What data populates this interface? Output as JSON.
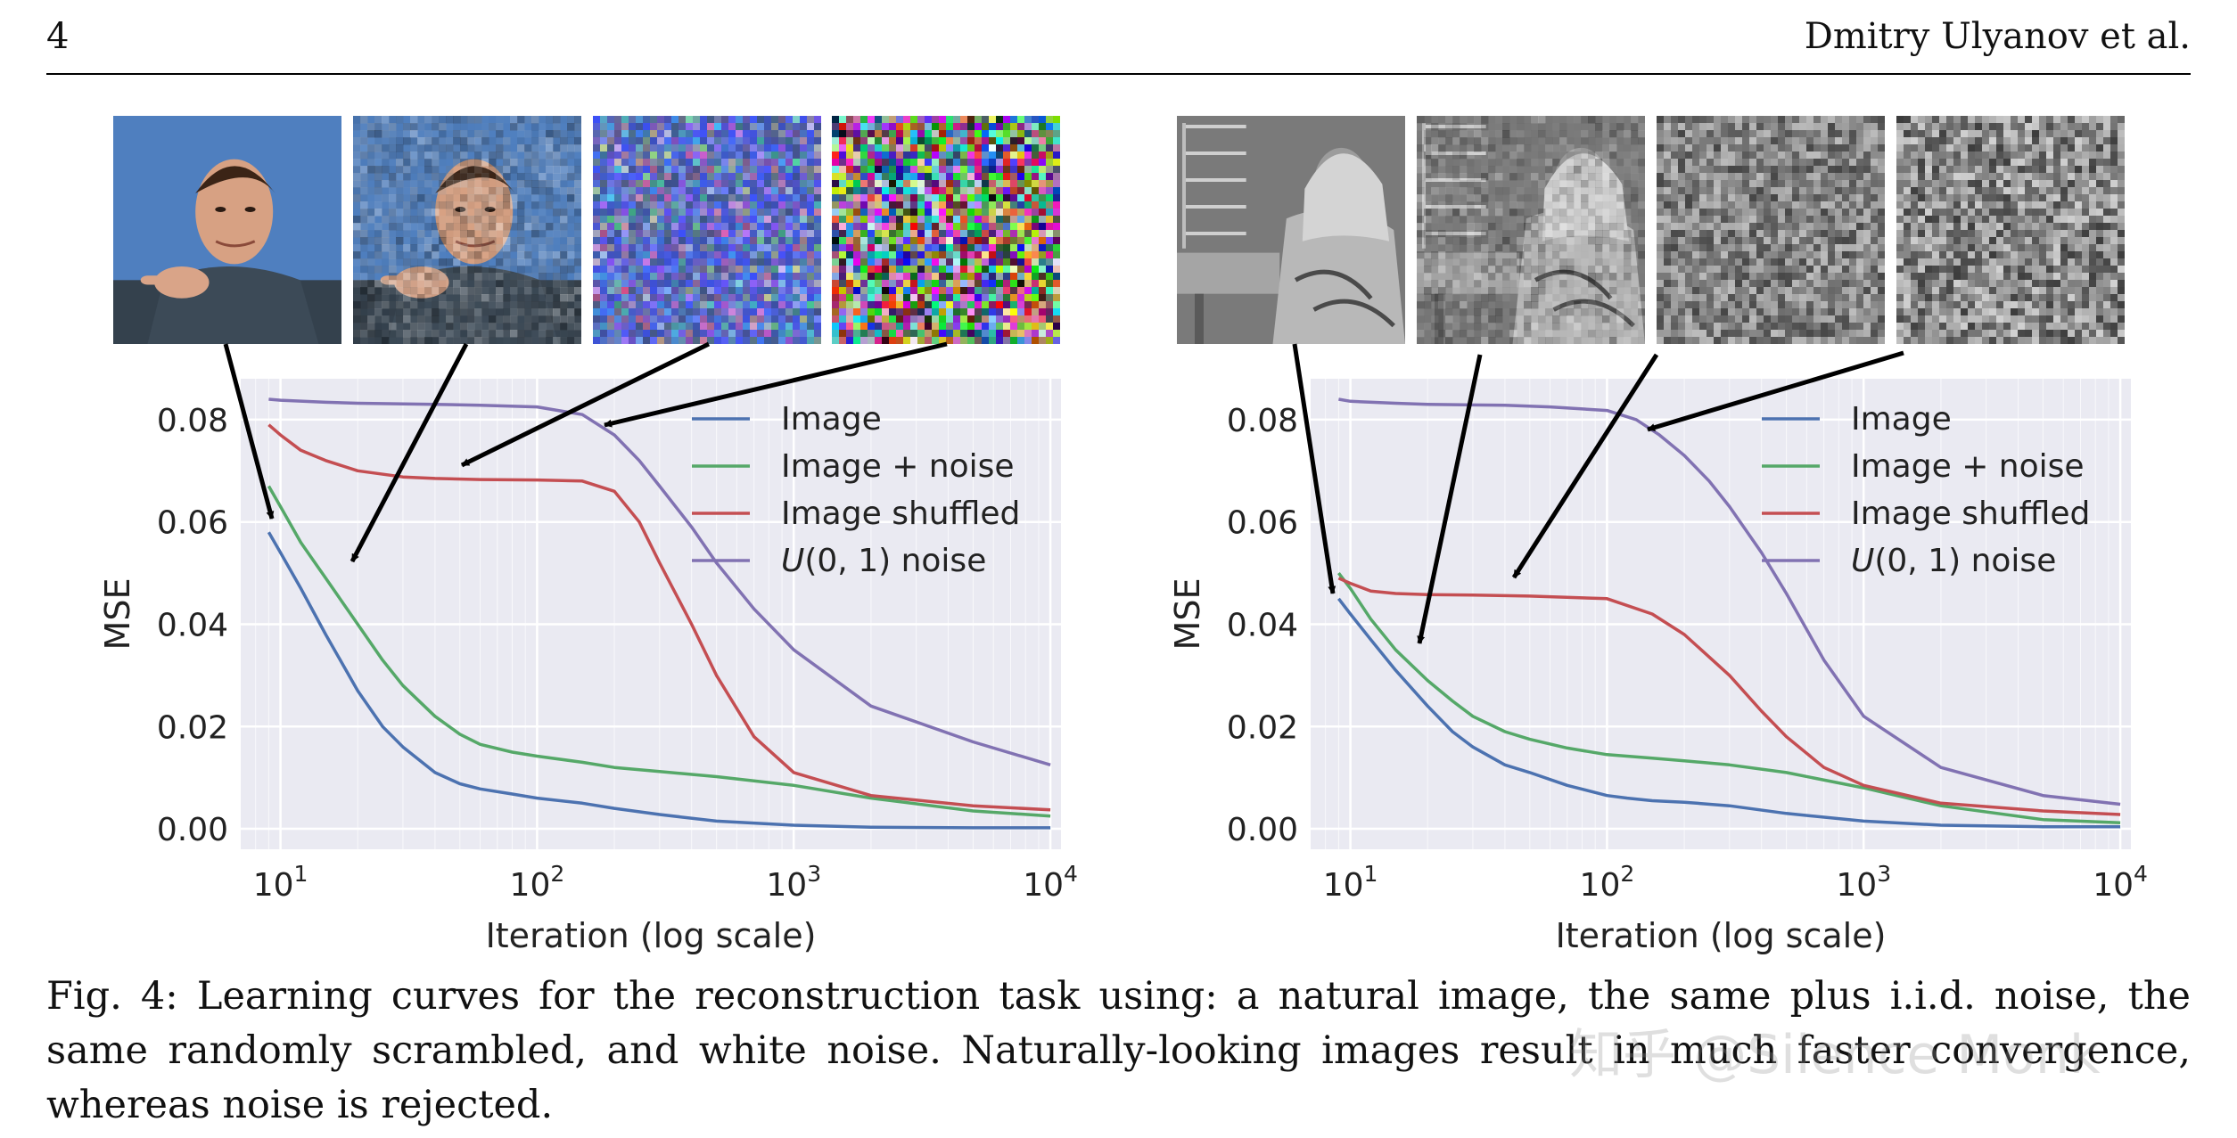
{
  "header": {
    "page_number": "4",
    "running_head": "Dmitry Ulyanov et al."
  },
  "caption": "Fig. 4: Learning curves for the reconstruction task using: a natural image, the same plus i.i.d. noise, the same randomly scrambled, and white noise. Naturally-looking images result in much faster convergence, whereas noise is rejected.",
  "watermark": "知乎 @Silence Monk",
  "thumbnails": {
    "left": [
      {
        "label": "portrait photo",
        "kind": "color-photo",
        "noise": 0
      },
      {
        "label": "portrait photo plus noise",
        "kind": "color-photo",
        "noise": 0.3
      },
      {
        "label": "shuffled pixels",
        "kind": "shuffled-color"
      },
      {
        "label": "uniform color noise",
        "kind": "color-noise"
      }
    ],
    "right": [
      {
        "label": "barbara photo",
        "kind": "gray-photo",
        "noise": 0
      },
      {
        "label": "barbara photo plus noise",
        "kind": "gray-photo",
        "noise": 0.3
      },
      {
        "label": "shuffled pixels",
        "kind": "shuffled-gray"
      },
      {
        "label": "uniform gray noise",
        "kind": "gray-noise"
      }
    ]
  },
  "colors": {
    "image": "#4c72b0",
    "image_noise": "#55a868",
    "image_shuffled": "#c44e52",
    "uniform_noise": "#8172b2",
    "plot_bg": "#eaeaf2",
    "grid": "#ffffff"
  },
  "chart_data": [
    {
      "type": "line",
      "xscale": "log",
      "xlim": [
        7,
        11000
      ],
      "ylim": [
        -0.004,
        0.088
      ],
      "xlabel": "Iteration (log scale)",
      "ylabel": "MSE",
      "xticks": [
        10,
        100,
        1000,
        10000
      ],
      "xtick_labels": [
        {
          "base": "10",
          "exp": "1"
        },
        {
          "base": "10",
          "exp": "2"
        },
        {
          "base": "10",
          "exp": "3"
        },
        {
          "base": "10",
          "exp": "4"
        }
      ],
      "yticks": [
        0.0,
        0.02,
        0.04,
        0.06,
        0.08
      ],
      "ytick_labels": [
        "0.00",
        "0.02",
        "0.04",
        "0.06",
        "0.08"
      ],
      "legend_position": "top-right",
      "series": [
        {
          "name": "Image",
          "color_key": "image",
          "x": [
            9,
            10,
            12,
            15,
            20,
            25,
            30,
            40,
            50,
            60,
            80,
            100,
            150,
            200,
            300,
            500,
            1000,
            2000,
            5000,
            10000
          ],
          "y": [
            0.058,
            0.054,
            0.047,
            0.038,
            0.027,
            0.02,
            0.016,
            0.011,
            0.0088,
            0.0078,
            0.0068,
            0.006,
            0.005,
            0.004,
            0.0028,
            0.0015,
            0.0007,
            0.0003,
            0.0002,
            0.0002
          ]
        },
        {
          "name": "Image + noise",
          "color_key": "image_noise",
          "x": [
            9,
            10,
            12,
            15,
            20,
            25,
            30,
            40,
            50,
            60,
            80,
            100,
            150,
            200,
            300,
            500,
            1000,
            2000,
            5000,
            10000
          ],
          "y": [
            0.067,
            0.063,
            0.056,
            0.049,
            0.04,
            0.033,
            0.028,
            0.022,
            0.0185,
            0.0165,
            0.015,
            0.0142,
            0.013,
            0.012,
            0.0112,
            0.0102,
            0.0085,
            0.006,
            0.0035,
            0.0025
          ]
        },
        {
          "name": "Image shuffled",
          "color_key": "image_shuffled",
          "x": [
            9,
            10,
            12,
            15,
            20,
            30,
            40,
            60,
            100,
            150,
            200,
            250,
            300,
            400,
            500,
            700,
            1000,
            2000,
            5000,
            10000
          ],
          "y": [
            0.079,
            0.077,
            0.074,
            0.072,
            0.07,
            0.0688,
            0.0685,
            0.0683,
            0.0682,
            0.068,
            0.066,
            0.06,
            0.052,
            0.04,
            0.03,
            0.018,
            0.011,
            0.0065,
            0.0045,
            0.0037
          ]
        },
        {
          "name": "U(0, 1) noise",
          "color_key": "uniform_noise",
          "x": [
            9,
            10,
            15,
            20,
            40,
            60,
            100,
            150,
            200,
            250,
            300,
            400,
            500,
            700,
            1000,
            2000,
            5000,
            10000
          ],
          "y": [
            0.084,
            0.0838,
            0.0834,
            0.0832,
            0.083,
            0.0828,
            0.0825,
            0.081,
            0.077,
            0.072,
            0.067,
            0.059,
            0.052,
            0.043,
            0.035,
            0.024,
            0.017,
            0.0125
          ]
        }
      ]
    },
    {
      "type": "line",
      "xscale": "log",
      "xlim": [
        7,
        11000
      ],
      "ylim": [
        -0.004,
        0.088
      ],
      "xlabel": "Iteration (log scale)",
      "ylabel": "MSE",
      "xticks": [
        10,
        100,
        1000,
        10000
      ],
      "xtick_labels": [
        {
          "base": "10",
          "exp": "1"
        },
        {
          "base": "10",
          "exp": "2"
        },
        {
          "base": "10",
          "exp": "3"
        },
        {
          "base": "10",
          "exp": "4"
        }
      ],
      "yticks": [
        0.0,
        0.02,
        0.04,
        0.06,
        0.08
      ],
      "ytick_labels": [
        "0.00",
        "0.02",
        "0.04",
        "0.06",
        "0.08"
      ],
      "legend_position": "top-right",
      "series": [
        {
          "name": "Image",
          "color_key": "image",
          "x": [
            9,
            10,
            12,
            15,
            20,
            25,
            30,
            40,
            50,
            70,
            100,
            120,
            150,
            200,
            300,
            500,
            1000,
            2000,
            5000,
            10000
          ],
          "y": [
            0.045,
            0.042,
            0.037,
            0.031,
            0.024,
            0.019,
            0.016,
            0.0125,
            0.011,
            0.0085,
            0.0065,
            0.006,
            0.0055,
            0.0052,
            0.0045,
            0.003,
            0.0015,
            0.0007,
            0.0004,
            0.0004
          ]
        },
        {
          "name": "Image + noise",
          "color_key": "image_noise",
          "x": [
            9,
            10,
            12,
            15,
            20,
            25,
            30,
            40,
            50,
            70,
            100,
            150,
            200,
            300,
            500,
            1000,
            2000,
            5000,
            10000
          ],
          "y": [
            0.05,
            0.047,
            0.041,
            0.035,
            0.029,
            0.025,
            0.022,
            0.019,
            0.0175,
            0.0158,
            0.0145,
            0.0138,
            0.0133,
            0.0125,
            0.011,
            0.008,
            0.0045,
            0.0018,
            0.0012
          ]
        },
        {
          "name": "Image shuffled",
          "color_key": "image_shuffled",
          "x": [
            9,
            10,
            12,
            15,
            20,
            30,
            50,
            100,
            150,
            200,
            300,
            400,
            500,
            700,
            1000,
            2000,
            5000,
            10000
          ],
          "y": [
            0.049,
            0.048,
            0.0465,
            0.046,
            0.0458,
            0.0457,
            0.0455,
            0.045,
            0.042,
            0.038,
            0.03,
            0.023,
            0.018,
            0.012,
            0.0085,
            0.005,
            0.0035,
            0.0028
          ]
        },
        {
          "name": "U(0, 1) noise",
          "color_key": "uniform_noise",
          "x": [
            9,
            10,
            15,
            20,
            40,
            60,
            100,
            130,
            160,
            200,
            250,
            300,
            400,
            500,
            700,
            1000,
            2000,
            5000,
            10000
          ],
          "y": [
            0.084,
            0.0836,
            0.0832,
            0.083,
            0.0828,
            0.0825,
            0.0818,
            0.08,
            0.077,
            0.073,
            0.068,
            0.063,
            0.054,
            0.046,
            0.033,
            0.022,
            0.012,
            0.0065,
            0.0048
          ]
        }
      ]
    }
  ]
}
